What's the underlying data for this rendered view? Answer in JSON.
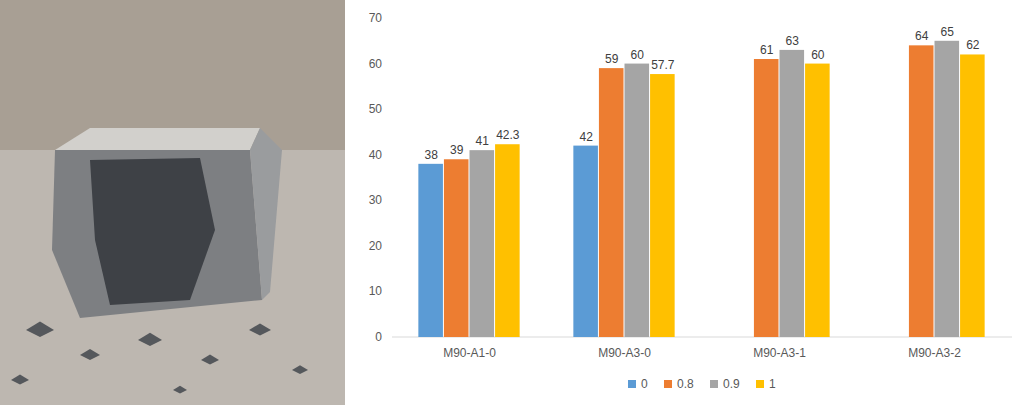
{
  "chart_data": {
    "type": "bar",
    "categories": [
      "M90-A1-0",
      "M90-A3-0",
      "M90-A3-1",
      "M90-A3-2"
    ],
    "series": [
      {
        "name": "0",
        "color": "#5b9bd5",
        "values": [
          38,
          42,
          null,
          null
        ]
      },
      {
        "name": "0.8",
        "color": "#ed7d31",
        "values": [
          39,
          59,
          61,
          64
        ]
      },
      {
        "name": "0.9",
        "color": "#a5a5a5",
        "values": [
          41,
          60,
          63,
          65
        ]
      },
      {
        "name": "1",
        "color": "#ffc000",
        "values": [
          42.3,
          57.7,
          60,
          62
        ]
      }
    ],
    "ylim": [
      0,
      70
    ],
    "yticks": [
      0,
      10,
      20,
      30,
      40,
      50,
      60,
      70
    ],
    "grid": false,
    "legend": "bottom",
    "data_labels": true
  }
}
